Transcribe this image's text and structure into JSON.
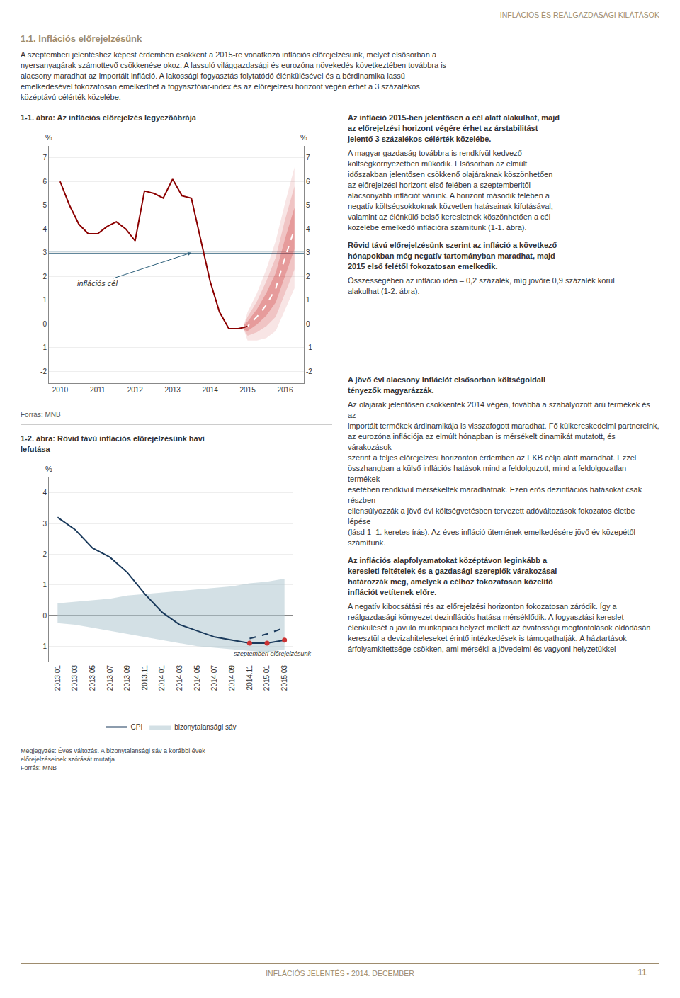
{
  "page_title": "INFLÁCIÓS ÉS REÁLGAZDASÁGI KILÁTÁSOK",
  "section_title": "1.1. Inflációs előrejelzésünk",
  "body_lines": [
    "A szeptemberi jelentéshez képest érdemben csökkent a 2015-re vonatkozó inflációs előrejelzésünk, melyet elsősorban a",
    "nyersanyagárak számottevő csökkenése okoz. A lassuló világgazdasági és eurozóna növekedés következtében továbbra is",
    "alacsony maradhat az importált infláció. A lakossági fogyasztás folytatódó élénkülésével és a bérdinamika lassú",
    "emelkedésével fokozatosan emelkedhet a fogyasztóiár-index és az előrejelzési horizont végén érhet a 3 százalékos",
    "középtávú célérték közelébe."
  ],
  "page_footer": "INFLÁCIÓS JELENTÉS • 2014. DECEMBER",
  "page_footer_right": "11",
  "right_column_top": [
    {
      "lead": [
        "Az infláció 2015-ben jelentősen a cél alatt alakulhat, majd",
        "az előrejelzési horizont végére érhet az árstabilitást",
        "jelentő 3 százalékos célérték közelébe."
      ],
      "text": [
        "A magyar gazdaság továbbra is rendkívül kedvező",
        "költségkörnyezetben működik. Elsősorban az elmúlt",
        "időszakban jelentősen csökkenő olajáraknak köszönhetően",
        "az előrejelzési horizont első felében a szeptemberitől",
        "alacsonyabb inflációt várunk. A horizont második felében a",
        "negatív költségsokkoknak közvetlen hatásainak kifutásával,",
        "valamint az élénkülő belső keresletnek köszönhetően a cél",
        "közelébe emelkedő inflációra számítunk (1-1. ábra)."
      ]
    },
    {
      "lead": [
        "Rövid távú előrejelzésünk szerint az infláció a következő",
        "hónapokban még negatív tartományban maradhat, majd",
        "2015 első felétől fokozatosan emelkedik."
      ],
      "text": [
        "Összességében az infláció idén – 0,2 százalék, míg jövőre 0,9 százalék körül",
        "alakulhat (1-2. ábra)."
      ]
    }
  ],
  "right_column_bottom": [
    {
      "lead": [
        "A jövő évi alacsony inflációt elsősorban költségoldali",
        "tényezők magyarázzák."
      ],
      "text": [
        "Az olajárak jelentősen csökkentek 2014 végén, továbbá a szabályozott árú termékek és az",
        "importált termékek árdinamikája is visszafogott maradhat. Fő külkereskedelmi partnereink,",
        "az eurozóna inflációja az elmúlt hónapban is mérsékelt dinamikát mutatott, és várakozások",
        "szerint a teljes előrejelzési horizonton érdemben az EKB célja alatt maradhat. Ezzel",
        "összhangban a külső inflációs hatások mind a feldolgozott, mind a feldolgozatlan termékek",
        "esetében rendkívül mérsékeltek maradhatnak. Ezen erős dezinflációs hatásokat csak részben",
        "ellensúlyozzák a jövő évi költségvetésben tervezett adóváltozások fokozatos életbe lépése",
        "(lásd 1–1. keretes írás). Az éves infláció ütemének emelkedésére jövő év közepétől számítunk."
      ]
    },
    {
      "lead": [
        "Az inflációs alapfolyamatokat középtávon leginkább a",
        "keresleti feltételek és a gazdasági szereplők várakozásai",
        "határozzák meg, amelyek a célhoz fokozatosan közelítő",
        "inflációt vetítenek előre."
      ],
      "text": [
        "A negatív kibocsátási rés az előrejelzési horizonton fokozatosan záródik. Így a",
        "reálgazdasági környezet dezinflációs hatása mérséklődik. A fogyasztási kereslet",
        "élénkülését a javuló munkapiaci helyzet mellett az óvatossági megfontolások oldódásán",
        "keresztül a devizahiteleseket érintő intézkedések is támogathatják. A háztartások",
        "árfolyamkitettsége csökken, ami mérsékli a jövedelmi és vagyoni helyzetükkel"
      ]
    }
  ],
  "chart_data": [
    {
      "type": "line",
      "title": "1-1. ábra: Az inflációs előrejelzés legyezőábrája",
      "ylabel": "%",
      "y2label": "%",
      "xlim": [
        2009.7,
        2016.5
      ],
      "xticks": [
        2010,
        2011,
        2012,
        2013,
        2014,
        2015,
        2016
      ],
      "ylim": [
        -2.5,
        7.5
      ],
      "yticks": [
        -2,
        -1,
        0,
        1,
        2,
        3,
        4,
        5,
        6,
        7
      ],
      "y2lim": [
        -2.5,
        7.5
      ],
      "y2ticks": [
        -2,
        -1,
        0,
        1,
        2,
        3,
        4,
        5,
        6,
        7
      ],
      "grid": true,
      "source": "Forrás: MNB",
      "hlines": [
        {
          "y": 3.0,
          "color": "#2c5f7a"
        }
      ],
      "annotations": [
        {
          "text": "inflációs cél",
          "x": 2011.0,
          "y": 1.7,
          "arrow_x": 2013.5,
          "arrow_y": 3.0,
          "color": "#2c5f7a"
        }
      ],
      "series": [
        {
          "type": "band",
          "color": "#cc3333",
          "x": [
            2014.9,
            2015.0,
            2015.25,
            2015.5,
            2015.75,
            2016.0,
            2016.25
          ],
          "lower": [
            -0.25,
            -0.7,
            -0.7,
            -0.6,
            -0.3,
            0.6,
            1.5
          ],
          "upper": [
            -0.05,
            0.5,
            1.3,
            2.3,
            3.5,
            5.1,
            6.6
          ]
        },
        {
          "type": "band",
          "color": "#cc3333",
          "x": [
            2014.9,
            2015.0,
            2015.25,
            2015.5,
            2015.75,
            2016.0,
            2016.25
          ],
          "lower": [
            -0.25,
            -0.5,
            -0.35,
            -0.1,
            0.3,
            1.3,
            2.3
          ],
          "upper": [
            -0.05,
            0.3,
            0.95,
            1.8,
            2.8,
            4.4,
            5.8
          ]
        },
        {
          "type": "band",
          "color": "#cc3333",
          "x": [
            2014.9,
            2015.0,
            2015.25,
            2015.5,
            2015.75,
            2016.0,
            2016.25
          ],
          "lower": [
            -0.25,
            -0.3,
            -0.02,
            0.35,
            0.9,
            2.05,
            3.15
          ],
          "upper": [
            -0.05,
            0.1,
            0.62,
            1.3,
            2.15,
            3.6,
            4.9
          ]
        },
        {
          "type": "line",
          "color": "#ffffff",
          "line_style": "dashed",
          "x": [
            2014.9,
            2015.0,
            2015.25,
            2015.5,
            2015.75,
            2016.0,
            2016.25
          ],
          "values": [
            -0.15,
            -0.1,
            0.3,
            0.8,
            1.5,
            2.8,
            4.0
          ]
        },
        {
          "type": "line",
          "color": "#8B0000",
          "x": [
            2010.0,
            2010.25,
            2010.5,
            2010.75,
            2011.0,
            2011.25,
            2011.5,
            2011.75,
            2012.0,
            2012.25,
            2012.5,
            2012.75,
            2013.0,
            2013.25,
            2013.5,
            2013.75,
            2014.0,
            2014.25,
            2014.5,
            2014.75,
            2014.9
          ],
          "values": [
            6.0,
            5.0,
            4.2,
            3.8,
            3.8,
            4.1,
            4.3,
            4.0,
            3.5,
            5.6,
            5.5,
            5.3,
            6.1,
            5.4,
            5.3,
            3.5,
            1.8,
            0.5,
            -0.2,
            -0.2,
            -0.15
          ]
        },
        {
          "type": "line",
          "color": "#8B0000",
          "x": [
            2014.9,
            2015.0
          ],
          "values": [
            -0.15,
            -0.1
          ]
        }
      ]
    },
    {
      "type": "line",
      "title": [
        "1-2. ábra: Rövid távú inflációs előrejelzésünk havi",
        "lefutása"
      ],
      "ylabel": "%",
      "categories": [
        "2013.01",
        "2013.03",
        "2013.05",
        "2013.07",
        "2013.09",
        "2013.11",
        "2014.01",
        "2014.03",
        "2014.05",
        "2014.07",
        "2014.09",
        "2014.11",
        "2015.01",
        "2015.03"
      ],
      "ylim": [
        -1.5,
        4.5
      ],
      "yticks": [
        -1,
        0,
        1,
        2,
        3,
        4
      ],
      "grid": true,
      "legend": "bottom",
      "note": [
        "Megjegyzés: Éves változás. A bizonytalansági sáv a korábbi évek",
        "előrejelzéseinek szórását mutatja."
      ],
      "source": "Forrás: MNB",
      "hlines": [
        {
          "y": 0,
          "color": "#888888"
        }
      ],
      "annotations": [
        {
          "text": "szeptemberi előrejelzésünk",
          "category": "2014.09",
          "y": -1.25
        }
      ],
      "series": [
        {
          "type": "band",
          "name": "bizonytalansági sáv",
          "color": "#aec6cf",
          "lower": [
            -0.25,
            -0.3,
            -0.4,
            -0.5,
            -0.6,
            -0.7,
            -0.8,
            -0.9,
            -1.0,
            -1.05,
            -1.1,
            -1.15,
            -1.2,
            -1.1
          ],
          "upper": [
            0.4,
            0.45,
            0.5,
            0.55,
            0.65,
            0.7,
            0.75,
            0.8,
            0.85,
            0.9,
            0.95,
            1.05,
            1.1,
            1.2
          ]
        },
        {
          "type": "line",
          "name": "CPI",
          "color": "#1a3a5c",
          "values": [
            3.2,
            2.8,
            2.2,
            1.9,
            1.4,
            0.7,
            0.1,
            -0.3,
            -0.5,
            -0.7,
            -0.8,
            -0.9,
            -0.9,
            -0.8
          ]
        },
        {
          "type": "line",
          "color": "#1a3a5c",
          "line_style": "dashed",
          "values": [
            null,
            null,
            null,
            null,
            null,
            null,
            null,
            null,
            null,
            null,
            null,
            -0.75,
            -0.6,
            -0.4
          ]
        },
        {
          "type": "scatter",
          "color": "#cc3333",
          "marker": "circle",
          "values": [
            null,
            null,
            null,
            null,
            null,
            null,
            null,
            null,
            null,
            null,
            null,
            -0.9,
            -0.9,
            -0.8
          ]
        }
      ]
    }
  ]
}
